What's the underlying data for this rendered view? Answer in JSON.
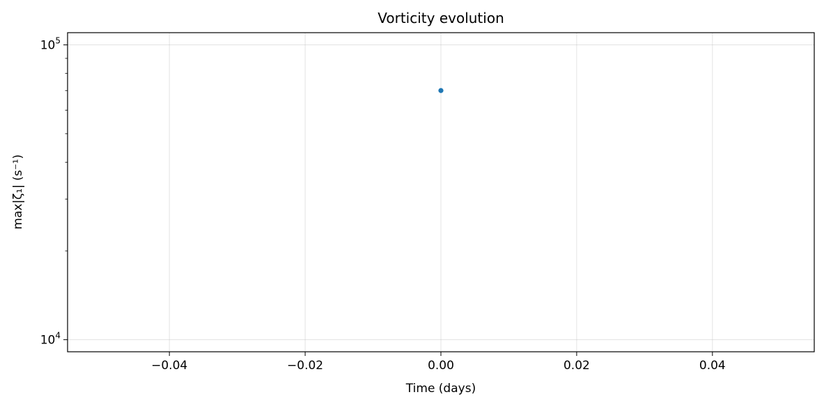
{
  "chart_data": {
    "type": "scatter",
    "title": "Vorticity evolution",
    "xlabel": "Time (days)",
    "ylabel": "max|ζ₁| (s⁻¹)",
    "xlim": [
      -0.055,
      0.055
    ],
    "ylim": [
      9100,
      110000
    ],
    "yscale": "log",
    "grid": true,
    "x_ticks": [
      {
        "value": -0.04,
        "label": "−0.04"
      },
      {
        "value": -0.02,
        "label": "−0.02"
      },
      {
        "value": 0.0,
        "label": "0.00"
      },
      {
        "value": 0.02,
        "label": "0.02"
      },
      {
        "value": 0.04,
        "label": "0.04"
      }
    ],
    "y_ticks": [
      {
        "value": 10000,
        "base": "10",
        "exp": "4"
      },
      {
        "value": 100000,
        "base": "10",
        "exp": "5"
      }
    ],
    "series": [
      {
        "color": "#1f77b4",
        "points": [
          {
            "x": 0.0,
            "y": 70000
          }
        ]
      }
    ]
  }
}
